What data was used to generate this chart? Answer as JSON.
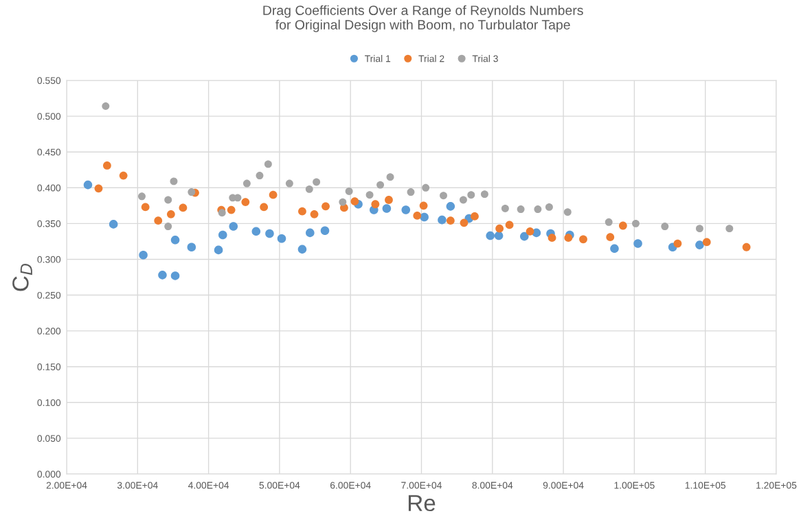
{
  "chart_data": {
    "type": "scatter",
    "title": "Drag Coefficients Over a Range of Reynolds Numbers\nfor Original Design with Boom, no Turbulator Tape",
    "xlabel": "Re",
    "ylabel": "C$_{D}$",
    "series": [
      {
        "name": "Trial 1",
        "color": "#5b9bd5",
        "x": [
          23000,
          26600,
          30800,
          33500,
          35300,
          35300,
          37600,
          41400,
          42000,
          43500,
          46700,
          48600,
          50300,
          53200,
          54300,
          56400,
          61100,
          63300,
          65100,
          67800,
          70400,
          72900,
          74100,
          76700,
          79700,
          80900,
          84500,
          86200,
          88200,
          90900,
          97200,
          100500,
          105400,
          109200
        ],
        "values": [
          0.404,
          0.349,
          0.306,
          0.278,
          0.277,
          0.327,
          0.317,
          0.313,
          0.334,
          0.346,
          0.339,
          0.336,
          0.329,
          0.314,
          0.337,
          0.34,
          0.377,
          0.369,
          0.371,
          0.369,
          0.359,
          0.355,
          0.374,
          0.357,
          0.333,
          0.333,
          0.332,
          0.337,
          0.336,
          0.334,
          0.315,
          0.322,
          0.317,
          0.32
        ]
      },
      {
        "name": "Trial 2",
        "color": "#ed7d31",
        "x": [
          24500,
          25700,
          28000,
          31100,
          32900,
          34700,
          36400,
          38100,
          41800,
          43200,
          45200,
          47800,
          49100,
          53200,
          54900,
          56500,
          59100,
          60600,
          63500,
          65400,
          69400,
          70300,
          74100,
          76000,
          77500,
          81000,
          82400,
          85300,
          88400,
          90700,
          92800,
          96600,
          98400,
          106100,
          110200,
          115800
        ],
        "values": [
          0.399,
          0.431,
          0.417,
          0.373,
          0.354,
          0.363,
          0.372,
          0.393,
          0.369,
          0.369,
          0.38,
          0.373,
          0.39,
          0.367,
          0.363,
          0.374,
          0.372,
          0.381,
          0.377,
          0.383,
          0.361,
          0.375,
          0.354,
          0.351,
          0.36,
          0.343,
          0.348,
          0.339,
          0.33,
          0.33,
          0.328,
          0.331,
          0.347,
          0.322,
          0.324,
          0.317
        ]
      },
      {
        "name": "Trial 3",
        "color": "#a5a5a5",
        "x": [
          25500,
          30600,
          34300,
          34300,
          35100,
          37600,
          41900,
          43400,
          44100,
          45400,
          47200,
          48400,
          51400,
          54200,
          55200,
          58900,
          59800,
          62700,
          64200,
          65600,
          68500,
          70600,
          73100,
          75900,
          77000,
          78900,
          81800,
          84000,
          86400,
          88000,
          90600,
          96400,
          100200,
          104300,
          109200,
          113400
        ],
        "values": [
          0.514,
          0.388,
          0.383,
          0.346,
          0.409,
          0.394,
          0.365,
          0.386,
          0.386,
          0.406,
          0.417,
          0.433,
          0.406,
          0.398,
          0.408,
          0.38,
          0.395,
          0.39,
          0.404,
          0.415,
          0.394,
          0.4,
          0.389,
          0.383,
          0.39,
          0.391,
          0.371,
          0.37,
          0.37,
          0.373,
          0.366,
          0.352,
          0.35,
          0.346,
          0.343,
          0.343
        ]
      }
    ],
    "xlim": [
      20000,
      120000
    ],
    "xticks": [
      {
        "value": 20000,
        "label": "2.00E+04"
      },
      {
        "value": 30000,
        "label": "3.00E+04"
      },
      {
        "value": 40000,
        "label": "4.00E+04"
      },
      {
        "value": 50000,
        "label": "5.00E+04"
      },
      {
        "value": 60000,
        "label": "6.00E+04"
      },
      {
        "value": 70000,
        "label": "7.00E+04"
      },
      {
        "value": 80000,
        "label": "8.00E+04"
      },
      {
        "value": 90000,
        "label": "9.00E+04"
      },
      {
        "value": 100000,
        "label": "1.00E+05"
      },
      {
        "value": 110000,
        "label": "1.10E+05"
      },
      {
        "value": 120000,
        "label": "1.20E+05"
      }
    ],
    "ylim": [
      0,
      0.55
    ],
    "yticks": [
      {
        "value": 0,
        "label": "0.000"
      },
      {
        "value": 0.05,
        "label": "0.050"
      },
      {
        "value": 0.1,
        "label": "0.100"
      },
      {
        "value": 0.15,
        "label": "0.150"
      },
      {
        "value": 0.2,
        "label": "0.200"
      },
      {
        "value": 0.25,
        "label": "0.250"
      },
      {
        "value": 0.3,
        "label": "0.300"
      },
      {
        "value": 0.35,
        "label": "0.350"
      },
      {
        "value": 0.4,
        "label": "0.400"
      },
      {
        "value": 0.45,
        "label": "0.450"
      },
      {
        "value": 0.5,
        "label": "0.500"
      },
      {
        "value": 0.55,
        "label": "0.550"
      }
    ],
    "grid": true,
    "legend": "top",
    "marker": "circle"
  }
}
